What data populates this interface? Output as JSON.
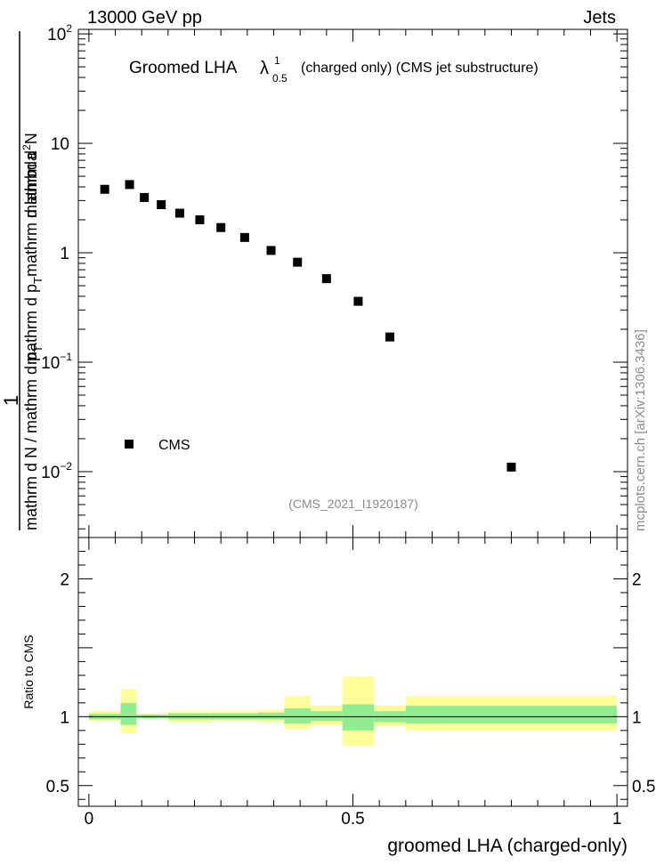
{
  "header": {
    "left": "13000 GeV pp",
    "right": "Jets"
  },
  "side_label": "mcplots.cern.ch [arXiv:1306.3436]",
  "chart_data": [
    {
      "type": "scatter",
      "title_main": "Groomed LHA",
      "title_symbol": "λ",
      "title_sup": "1",
      "title_sub": "0.5",
      "title_rest": "(charged only) (CMS jet substructure)",
      "analysis_tag": "(CMS_2021_I1920187)",
      "ylabel_numerator": "1",
      "ylabel_denominator": "mathrm d N / mathrm d p",
      "ylabel_denominator_sub": "T",
      "ylabel_top": "mathrm d",
      "ylabel_top_sup": "2",
      "ylabel_top_rest": "N",
      "ylabel_bottom": "mathrm d p",
      "ylabel_bottom_sub": "T",
      "ylabel_bottom_rest": "mathrm d lambda",
      "yscale": "log",
      "ylim": [
        0.0025,
        110
      ],
      "xlim": [
        -0.02,
        1.02
      ],
      "y_ticks": [
        {
          "value": 100,
          "base": "10",
          "exp": "2"
        },
        {
          "value": 10,
          "base": "10",
          "exp": ""
        },
        {
          "value": 1,
          "base": "1",
          "exp": ""
        },
        {
          "value": 0.1,
          "base": "10",
          "exp": "−1"
        },
        {
          "value": 0.01,
          "base": "10",
          "exp": "−2"
        }
      ],
      "legend": {
        "position": "lower-left",
        "entries": [
          "CMS"
        ]
      },
      "series": [
        {
          "name": "CMS",
          "x": [
            0.03,
            0.077,
            0.105,
            0.137,
            0.172,
            0.21,
            0.25,
            0.295,
            0.345,
            0.395,
            0.45,
            0.51,
            0.57,
            0.8
          ],
          "y": [
            3.8,
            4.2,
            3.2,
            2.75,
            2.3,
            2.0,
            1.7,
            1.38,
            1.05,
            0.82,
            0.58,
            0.36,
            0.17,
            0.011
          ]
        }
      ]
    },
    {
      "type": "area",
      "ylabel": "Ratio to CMS",
      "xlabel": "groomed LHA (charged-only)",
      "ylim": [
        0.35,
        2.3
      ],
      "xlim": [
        -0.02,
        1.02
      ],
      "y_ticks": [
        "2",
        "1",
        "0.5"
      ],
      "y_tick_values": [
        2,
        1,
        0.5
      ],
      "x_ticks": [
        "0",
        "0.5",
        "1"
      ],
      "x_tick_values": [
        0,
        0.5,
        1
      ],
      "reference": 1.0,
      "bins": [
        {
          "x0": 0.0,
          "x1": 0.06,
          "green": [
            0.98,
            1.02
          ],
          "yellow": [
            0.97,
            1.04
          ]
        },
        {
          "x0": 0.06,
          "x1": 0.09,
          "green": [
            0.94,
            1.1
          ],
          "yellow": [
            0.88,
            1.2
          ]
        },
        {
          "x0": 0.09,
          "x1": 0.15,
          "green": [
            0.99,
            1.015
          ],
          "yellow": [
            0.985,
            1.02
          ]
        },
        {
          "x0": 0.15,
          "x1": 0.23,
          "green": [
            0.98,
            1.025
          ],
          "yellow": [
            0.96,
            1.04
          ]
        },
        {
          "x0": 0.23,
          "x1": 0.32,
          "green": [
            0.98,
            1.025
          ],
          "yellow": [
            0.97,
            1.04
          ]
        },
        {
          "x0": 0.32,
          "x1": 0.37,
          "green": [
            0.98,
            1.03
          ],
          "yellow": [
            0.96,
            1.05
          ]
        },
        {
          "x0": 0.37,
          "x1": 0.42,
          "green": [
            0.95,
            1.06
          ],
          "yellow": [
            0.91,
            1.15
          ]
        },
        {
          "x0": 0.42,
          "x1": 0.48,
          "green": [
            0.97,
            1.04
          ],
          "yellow": [
            0.94,
            1.08
          ]
        },
        {
          "x0": 0.48,
          "x1": 0.54,
          "green": [
            0.9,
            1.09
          ],
          "yellow": [
            0.79,
            1.29
          ]
        },
        {
          "x0": 0.54,
          "x1": 0.6,
          "green": [
            0.96,
            1.04
          ],
          "yellow": [
            0.93,
            1.08
          ]
        },
        {
          "x0": 0.6,
          "x1": 1.0,
          "green": [
            0.95,
            1.08
          ],
          "yellow": [
            0.9,
            1.15
          ]
        }
      ]
    }
  ],
  "colors": {
    "green": "#90ee90",
    "yellow": "#ffff99",
    "marker": "#000000",
    "grey_text": "#8c8c8c"
  }
}
